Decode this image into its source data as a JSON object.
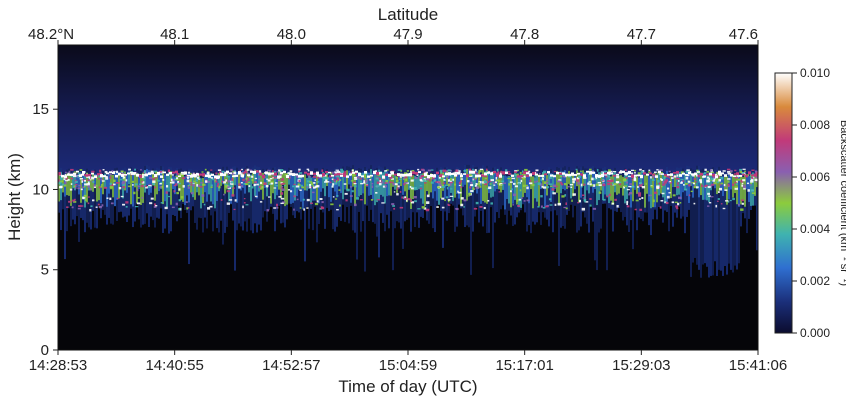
{
  "chart_data": {
    "type": "heatmap",
    "x_top": {
      "title": "Latitude",
      "ticks": [
        {
          "value": 48.2,
          "label": "48.2°N"
        },
        {
          "value": 48.1,
          "label": "48.1"
        },
        {
          "value": 48.0,
          "label": "48.0"
        },
        {
          "value": 47.9,
          "label": "47.9"
        },
        {
          "value": 47.8,
          "label": "47.8"
        },
        {
          "value": 47.7,
          "label": "47.7"
        },
        {
          "value": 47.6,
          "label": "47.6"
        }
      ]
    },
    "x_bottom": {
      "title": "Time of day (UTC)",
      "ticks": [
        "14:28:53",
        "14:40:55",
        "14:52:57",
        "15:04:59",
        "15:17:01",
        "15:29:03",
        "15:41:06"
      ]
    },
    "y": {
      "title": "Height (km)",
      "range": [
        0,
        19
      ],
      "ticks": [
        0,
        5,
        10,
        15
      ]
    },
    "colorbar": {
      "title": "Backscatter coefficient (km⁻¹ sr⁻¹)",
      "range": [
        0.0,
        0.01
      ],
      "ticks": [
        "0.000",
        "0.002",
        "0.004",
        "0.006",
        "0.008",
        "0.010"
      ],
      "colors": [
        "#0b0c2e",
        "#1b2f7a",
        "#2f6fd0",
        "#3fb3b0",
        "#8ccc3c",
        "#8a5fb0",
        "#c13a7a",
        "#d98a3c",
        "#ffffff"
      ]
    },
    "cloud_layer": {
      "top_km": 11.3,
      "base_km_min": 4.5,
      "base_km_typical": 8.5
    }
  }
}
